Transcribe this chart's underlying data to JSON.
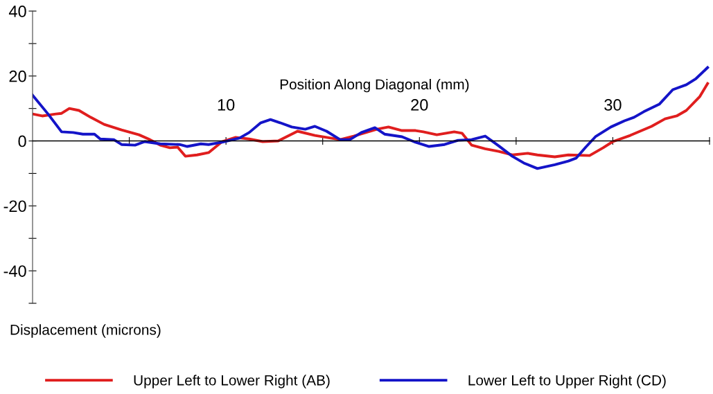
{
  "chart_data": {
    "type": "line",
    "xlabel": "Position Along Diagonal (mm)",
    "ylabel": "Displacement (microns)",
    "xlim": [
      0,
      35
    ],
    "ylim": [
      -50,
      40
    ],
    "xticks": [
      {
        "value": 5,
        "label": null
      },
      10,
      {
        "value": 15,
        "label": null
      },
      20,
      {
        "value": 25,
        "label": null
      },
      30,
      {
        "value": 35,
        "label": null
      }
    ],
    "yticks": [
      {
        "value": -50,
        "label": null
      },
      -40,
      {
        "value": -30,
        "label": null
      },
      -20,
      {
        "value": -10,
        "label": null
      },
      0,
      {
        "value": 10,
        "label": null
      },
      20,
      {
        "value": 30,
        "label": null
      },
      40
    ],
    "grid": false,
    "legend": "bottom",
    "marker": "none",
    "line_style": "solid",
    "series": [
      {
        "name": "Upper Left to Lower Right (AB)",
        "color": "#e01e1e",
        "x": [
          0,
          0.5,
          1.2,
          1.5,
          1.9,
          2.4,
          3.0,
          3.7,
          4.6,
          5.5,
          6.0,
          6.6,
          7.1,
          7.5,
          7.9,
          8.5,
          9.1,
          9.8,
          10.5,
          11.2,
          11.9,
          12.7,
          13.7,
          14.6,
          15.9,
          16.6,
          17.8,
          18.4,
          19.1,
          19.8,
          20.2,
          20.9,
          21.8,
          22.2,
          22.7,
          23.4,
          24.1,
          24.8,
          25.6,
          26.1,
          27.0,
          27.7,
          28.8,
          29.5,
          30.0,
          30.9,
          32.0,
          32.7,
          33.3,
          33.8,
          34.5,
          34.9
        ],
        "values": [
          8.3,
          7.7,
          8.3,
          8.5,
          10,
          9.4,
          7.3,
          5.1,
          3.4,
          1.9,
          0.6,
          -1.3,
          -2.1,
          -1.9,
          -4.7,
          -4.3,
          -3.6,
          -0.2,
          1.1,
          0.6,
          -0.2,
          0,
          3,
          1.7,
          0.4,
          1.5,
          3.6,
          4.3,
          3.2,
          3.2,
          2.8,
          1.9,
          2.8,
          2.4,
          -1.3,
          -2.4,
          -3.2,
          -4.3,
          -3.8,
          -4.3,
          -4.9,
          -4.3,
          -4.5,
          -2.1,
          -0.2,
          1.7,
          4.5,
          6.8,
          7.7,
          9.4,
          13.7,
          17.7
        ]
      },
      {
        "name": "Lower Left to Upper Right (CD)",
        "color": "#1414c8",
        "x": [
          0,
          0.8,
          1.5,
          2.1,
          2.6,
          3.2,
          3.5,
          4.2,
          4.6,
          5.3,
          5.8,
          6.6,
          7.6,
          8.0,
          8.7,
          9.1,
          9.8,
          10.7,
          11.2,
          11.8,
          12.3,
          12.8,
          13.4,
          14.1,
          14.6,
          15.2,
          15.9,
          16.4,
          17.0,
          17.7,
          18.2,
          19.1,
          19.8,
          20.5,
          21.3,
          22.0,
          22.7,
          23.4,
          24.1,
          24.8,
          25.4,
          26.1,
          27.0,
          27.7,
          28.1,
          28.6,
          29.1,
          29.9,
          30.6,
          31.1,
          31.6,
          32.4,
          33.1,
          33.8,
          34.3,
          34.9
        ],
        "values": [
          14.1,
          8.3,
          2.8,
          2.6,
          2.1,
          2.1,
          0.6,
          0.4,
          -1.1,
          -1.3,
          -0.2,
          -0.9,
          -1.1,
          -1.7,
          -0.9,
          -1.1,
          -0.4,
          0.9,
          2.6,
          5.6,
          6.6,
          5.6,
          4.3,
          3.6,
          4.5,
          3,
          0.4,
          0.4,
          2.6,
          4.1,
          2.1,
          1.3,
          -0.4,
          -1.7,
          -1.1,
          0.2,
          0.4,
          1.5,
          -1.5,
          -4.7,
          -6.8,
          -8.5,
          -7.3,
          -6.2,
          -5.3,
          -1.9,
          1.3,
          4.3,
          6.2,
          7.3,
          9.0,
          11.3,
          15.8,
          17.3,
          19.2,
          22.6
        ]
      }
    ]
  }
}
